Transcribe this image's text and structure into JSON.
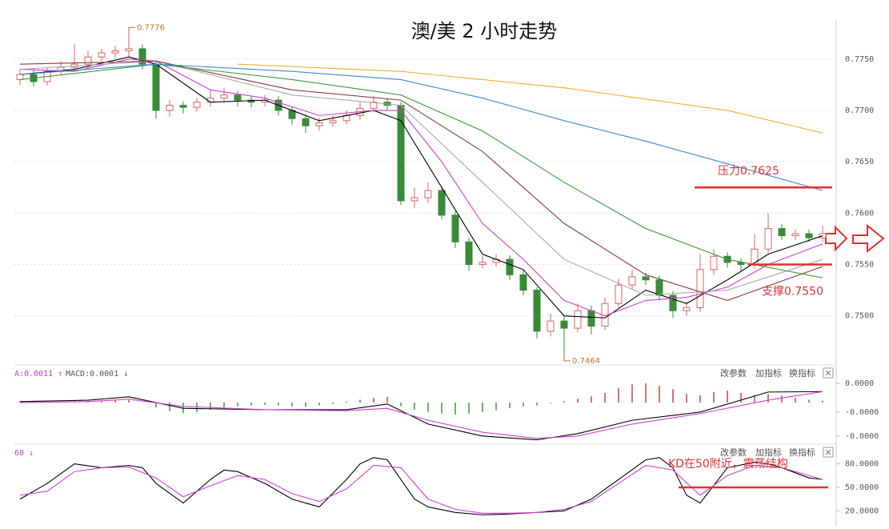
{
  "chart_data": [
    {
      "type": "candlestick",
      "title": "澳/美 2 小时走势",
      "open": [
        0.773,
        0.7735,
        0.7728,
        0.7738,
        0.7742,
        0.7745,
        0.7752,
        0.7756,
        0.7758,
        0.776,
        0.7745,
        0.77,
        0.7705,
        0.7703,
        0.7708,
        0.7712,
        0.7715,
        0.771,
        0.7708,
        0.771,
        0.77,
        0.7692,
        0.7685,
        0.7688,
        0.769,
        0.7695,
        0.7702,
        0.7708,
        0.7705,
        0.7612,
        0.7615,
        0.7622,
        0.7598,
        0.7572,
        0.755,
        0.7552,
        0.7555,
        0.754,
        0.7525,
        0.7485,
        0.7495,
        0.7488,
        0.7505,
        0.749,
        0.7512,
        0.753,
        0.7538,
        0.7535,
        0.752,
        0.7505,
        0.7508,
        0.7545,
        0.7558,
        0.7552,
        0.755,
        0.7565,
        0.7585,
        0.7578,
        0.758,
        0.7576
      ],
      "high": [
        0.774,
        0.7739,
        0.7742,
        0.7748,
        0.7765,
        0.7758,
        0.776,
        0.7763,
        0.7776,
        0.7764,
        0.7748,
        0.771,
        0.7709,
        0.7712,
        0.772,
        0.7722,
        0.7719,
        0.7714,
        0.7715,
        0.7714,
        0.7704,
        0.7696,
        0.7693,
        0.7695,
        0.77,
        0.7708,
        0.7714,
        0.7712,
        0.7708,
        0.7625,
        0.763,
        0.7626,
        0.7602,
        0.7576,
        0.7558,
        0.756,
        0.7559,
        0.7544,
        0.7528,
        0.7502,
        0.75,
        0.7512,
        0.751,
        0.7518,
        0.7536,
        0.7545,
        0.7542,
        0.7539,
        0.7524,
        0.7514,
        0.756,
        0.7565,
        0.7562,
        0.7556,
        0.758,
        0.76,
        0.7589,
        0.7584,
        0.7584,
        0.7588
      ],
      "low": [
        0.7725,
        0.7723,
        0.7724,
        0.7734,
        0.7738,
        0.7741,
        0.7748,
        0.7751,
        0.7752,
        0.774,
        0.7692,
        0.7694,
        0.7697,
        0.7699,
        0.7704,
        0.7708,
        0.7704,
        0.7703,
        0.7704,
        0.7695,
        0.7686,
        0.7678,
        0.768,
        0.7684,
        0.7686,
        0.7691,
        0.7698,
        0.77,
        0.7608,
        0.7605,
        0.761,
        0.7594,
        0.7566,
        0.7544,
        0.7546,
        0.7548,
        0.7535,
        0.752,
        0.7478,
        0.748,
        0.7464,
        0.7484,
        0.7482,
        0.7486,
        0.7508,
        0.7526,
        0.753,
        0.7515,
        0.7498,
        0.75,
        0.7504,
        0.754,
        0.7547,
        0.7544,
        0.7546,
        0.7561,
        0.7574,
        0.7574,
        0.7572,
        0.7572
      ],
      "close": [
        0.7735,
        0.7728,
        0.7738,
        0.7742,
        0.7745,
        0.7752,
        0.7756,
        0.7758,
        0.776,
        0.7745,
        0.77,
        0.7705,
        0.7703,
        0.7708,
        0.7712,
        0.7715,
        0.771,
        0.7708,
        0.771,
        0.77,
        0.7692,
        0.7685,
        0.7688,
        0.769,
        0.7695,
        0.7702,
        0.7708,
        0.7705,
        0.7612,
        0.7615,
        0.7622,
        0.7598,
        0.7572,
        0.755,
        0.7552,
        0.7555,
        0.754,
        0.7525,
        0.7485,
        0.7495,
        0.7488,
        0.7505,
        0.749,
        0.7512,
        0.753,
        0.7538,
        0.7535,
        0.752,
        0.7505,
        0.7508,
        0.7545,
        0.7558,
        0.7552,
        0.755,
        0.7565,
        0.7585,
        0.7578,
        0.758,
        0.7576,
        0.758
      ],
      "up_color": "#e06060",
      "down_color": "#3a8a3a",
      "ylim": [
        0.7453,
        0.7788
      ],
      "yticks": [
        {
          "value": 0.775,
          "label": "0.7750"
        },
        {
          "value": 0.77,
          "label": "0.7700"
        },
        {
          "value": 0.765,
          "label": "0.7650"
        },
        {
          "value": 0.76,
          "label": "0.7600"
        },
        {
          "value": 0.755,
          "label": "0.7550"
        },
        {
          "value": 0.75,
          "label": "0.7500"
        }
      ],
      "grid": true,
      "lines": [
        {
          "color": "#000000",
          "x": [
            0,
            4,
            8,
            10,
            14,
            18,
            22,
            26,
            28,
            31,
            34,
            37,
            40,
            43,
            46,
            49,
            52,
            55,
            59
          ],
          "values": [
            0.7735,
            0.774,
            0.7752,
            0.7745,
            0.7708,
            0.771,
            0.769,
            0.77,
            0.769,
            0.7625,
            0.756,
            0.7545,
            0.75,
            0.7498,
            0.7525,
            0.7512,
            0.7535,
            0.756,
            0.7578
          ]
        },
        {
          "color": "#d040d0",
          "x": [
            0,
            4,
            8,
            10,
            14,
            18,
            22,
            26,
            28,
            31,
            34,
            37,
            40,
            43,
            46,
            49,
            52,
            55,
            59
          ],
          "values": [
            0.774,
            0.7738,
            0.775,
            0.7748,
            0.772,
            0.7712,
            0.7695,
            0.77,
            0.77,
            0.765,
            0.759,
            0.7555,
            0.7515,
            0.75,
            0.7515,
            0.7518,
            0.7528,
            0.755,
            0.757
          ]
        },
        {
          "color": "#aaaaaa",
          "x": [
            0,
            10,
            20,
            28,
            34,
            40,
            46,
            52,
            59
          ],
          "values": [
            0.774,
            0.7748,
            0.7715,
            0.7705,
            0.763,
            0.7555,
            0.752,
            0.7525,
            0.7555
          ]
        },
        {
          "color": "#8b3a3a",
          "x": [
            0,
            10,
            20,
            28,
            34,
            40,
            46,
            52,
            59
          ],
          "values": [
            0.7745,
            0.7748,
            0.772,
            0.771,
            0.766,
            0.759,
            0.754,
            0.7515,
            0.7548
          ]
        },
        {
          "color": "#3a9a3a",
          "x": [
            0,
            10,
            20,
            28,
            34,
            40,
            46,
            52,
            59
          ],
          "values": [
            0.773,
            0.7745,
            0.773,
            0.7715,
            0.768,
            0.763,
            0.7585,
            0.7555,
            0.7537
          ]
        },
        {
          "color": "#3a8ad0",
          "x": [
            0,
            10,
            20,
            28,
            34,
            40,
            46,
            52,
            59
          ],
          "values": [
            0.7735,
            0.7745,
            0.7738,
            0.773,
            0.7712,
            0.769,
            0.767,
            0.7648,
            0.7622
          ]
        },
        {
          "color": "#f0b030",
          "x": [
            16,
            28,
            40,
            52,
            59
          ],
          "values": [
            0.7745,
            0.7738,
            0.7722,
            0.77,
            0.7678
          ]
        }
      ],
      "extremes": [
        {
          "value": 0.7776,
          "label": "0.7776"
        },
        {
          "value": 0.7464,
          "label": "0.7464"
        }
      ],
      "levels": [
        {
          "value": 0.7625,
          "label": "压力0.7625"
        },
        {
          "value": 0.755,
          "label": "支撑0.7550"
        }
      ],
      "level_color": "#e03030"
    },
    {
      "type": "macd",
      "header": [
        "A:0.0011 ↑",
        "MACD:0.0001 ↓"
      ],
      "toolbar": [
        "改参数",
        "加指标",
        "换指标"
      ],
      "histogram": [
        2e-06,
        1e-06,
        1e-06,
        2e-06,
        3e-06,
        3e-06,
        4e-06,
        5e-06,
        5e-06,
        0,
        -1e-05,
        -1.8e-05,
        -2.2e-05,
        -2e-05,
        -1.5e-05,
        -1e-05,
        -8e-06,
        -6e-06,
        -5e-06,
        -6e-06,
        -8e-06,
        -9e-06,
        -6e-06,
        -3e-06,
        2e-06,
        6e-06,
        1e-05,
        1.2e-05,
        -8e-06,
        -1.5e-05,
        -2e-05,
        -2.3e-05,
        -2.5e-05,
        -2.3e-05,
        -2e-05,
        -1.6e-05,
        -1.2e-05,
        -8e-06,
        -6e-06,
        -2e-06,
        3e-06,
        8e-06,
        1.3e-05,
        2e-05,
        3e-05,
        3.8e-05,
        4e-05,
        3.5e-05,
        2.8e-05,
        1.8e-05,
        1.5e-05,
        2.2e-05,
        2.5e-05,
        2e-05,
        1.6e-05,
        1.8e-05,
        1.5e-05,
        1e-05,
        6e-06,
        4e-06
      ],
      "up_color": "#d04040",
      "down_color": "#3a9a3a",
      "ylim": [
        -8.2e-05,
        7.2e-05
      ],
      "yticks": [
        {
          "value": 4e-05,
          "label": "0.0000"
        },
        {
          "value": -2e-05,
          "label": "-0.0000"
        },
        {
          "value": -7e-05,
          "label": "-0.0000"
        }
      ],
      "lines": [
        {
          "color": "#000000",
          "x": [
            0,
            5,
            8,
            12,
            18,
            24,
            27,
            30,
            34,
            38,
            41,
            45,
            50,
            55,
            59
          ],
          "values": [
            2e-06,
            5e-06,
            1.2e-05,
            -1.2e-05,
            -1.5e-05,
            -1.5e-05,
            -3e-06,
            -4.5e-05,
            -7e-05,
            -7.8e-05,
            -6.5e-05,
            -3.7e-05,
            -2e-05,
            2.2e-05,
            2.3e-05
          ]
        },
        {
          "color": "#d040d0",
          "x": [
            0,
            5,
            8,
            12,
            18,
            24,
            27,
            30,
            34,
            38,
            41,
            45,
            50,
            55,
            59
          ],
          "values": [
            0,
            2e-06,
            7e-06,
            -8e-06,
            -1.5e-05,
            -1.7e-05,
            -1.2e-05,
            -3.7e-05,
            -6.2e-05,
            -7.5e-05,
            -7e-05,
            -4.5e-05,
            -2.3e-05,
            5e-06,
            2.3e-05
          ]
        }
      ]
    },
    {
      "type": "kd",
      "header": [
        "60 ↓"
      ],
      "toolbar": [
        "改参数",
        "加指标",
        "换指标"
      ],
      "ylim": [
        3,
        103
      ],
      "yticks": [
        {
          "value": 80,
          "label": "80.0000"
        },
        {
          "value": 50,
          "label": "50.0000"
        },
        {
          "value": 20,
          "label": "20.0000"
        }
      ],
      "lines": [
        {
          "color": "#000000",
          "x": [
            0,
            2,
            4,
            6,
            8,
            9,
            10,
            12,
            14,
            15,
            16,
            18,
            20,
            22,
            24,
            25,
            26,
            27,
            28,
            29,
            30,
            32,
            34,
            36,
            38,
            40,
            42,
            44,
            46,
            47,
            48,
            49,
            50,
            52,
            54,
            55,
            56,
            58,
            59
          ],
          "values": [
            35,
            55,
            80,
            75,
            78,
            75,
            55,
            30,
            60,
            72,
            70,
            55,
            35,
            25,
            60,
            80,
            88,
            85,
            60,
            35,
            25,
            18,
            15,
            16,
            18,
            20,
            35,
            60,
            85,
            88,
            75,
            40,
            30,
            75,
            82,
            80,
            75,
            62,
            60
          ]
        },
        {
          "color": "#d040d0",
          "x": [
            0,
            2,
            4,
            6,
            8,
            10,
            12,
            14,
            16,
            18,
            20,
            22,
            24,
            26,
            28,
            30,
            32,
            34,
            36,
            38,
            40,
            42,
            44,
            46,
            48,
            50,
            52,
            54,
            56,
            58,
            59
          ],
          "values": [
            40,
            45,
            70,
            75,
            76,
            62,
            38,
            52,
            65,
            60,
            42,
            32,
            48,
            78,
            75,
            35,
            22,
            17,
            17,
            18,
            22,
            32,
            55,
            78,
            72,
            40,
            65,
            78,
            75,
            65,
            60
          ]
        }
      ],
      "level": {
        "value": 50,
        "label": "KD在50附近，震荡结构"
      },
      "level_color": "#e03030"
    }
  ]
}
